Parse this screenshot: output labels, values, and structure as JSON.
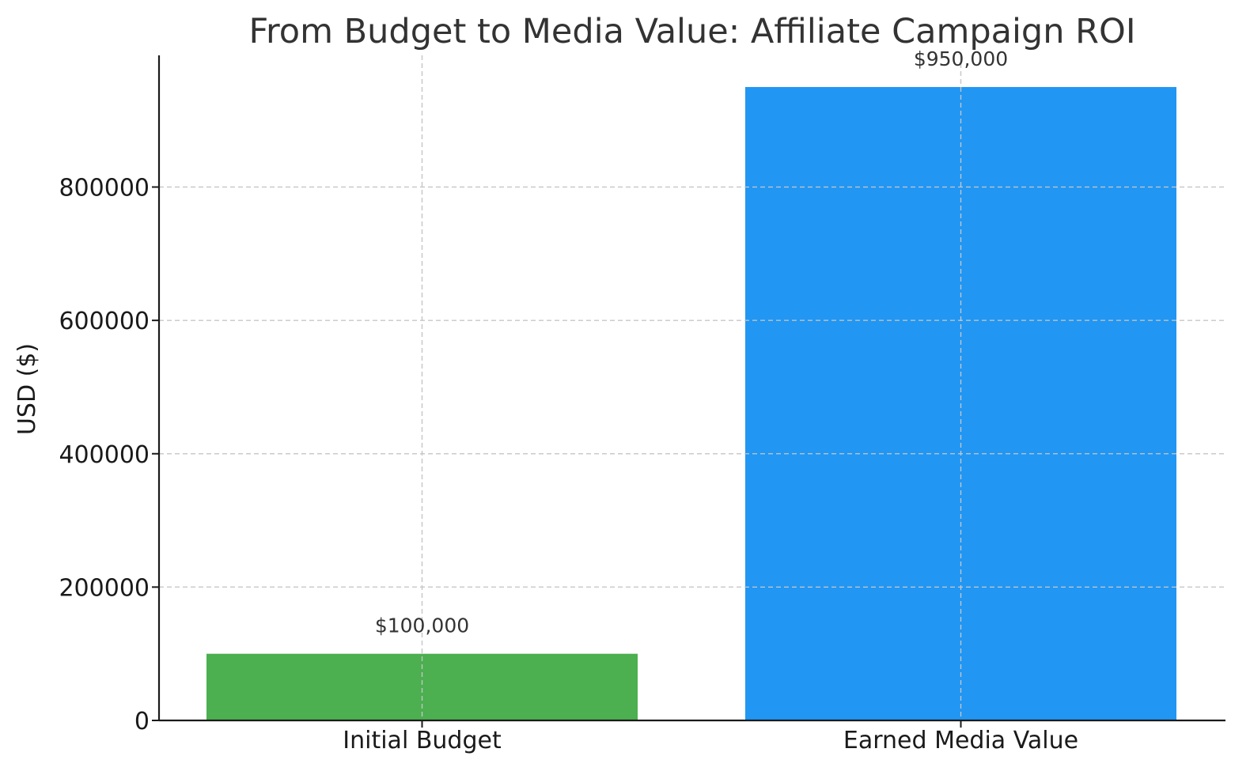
{
  "chart_data": {
    "type": "bar",
    "title": "From Budget to Media Value: Affiliate Campaign ROI",
    "xlabel": "",
    "ylabel": "USD ($)",
    "categories": [
      "Initial Budget",
      "Earned Media Value"
    ],
    "values": [
      100000,
      950000
    ],
    "data_labels": [
      "$100,000",
      "$950,000"
    ],
    "colors": [
      "#4caf50",
      "#2196f3"
    ],
    "ylim": [
      0,
      997500
    ],
    "yticks": [
      0,
      200000,
      400000,
      600000,
      800000
    ],
    "ytick_labels": [
      "0",
      "200000",
      "400000",
      "600000",
      "800000"
    ],
    "grid": true,
    "legend": "none"
  }
}
